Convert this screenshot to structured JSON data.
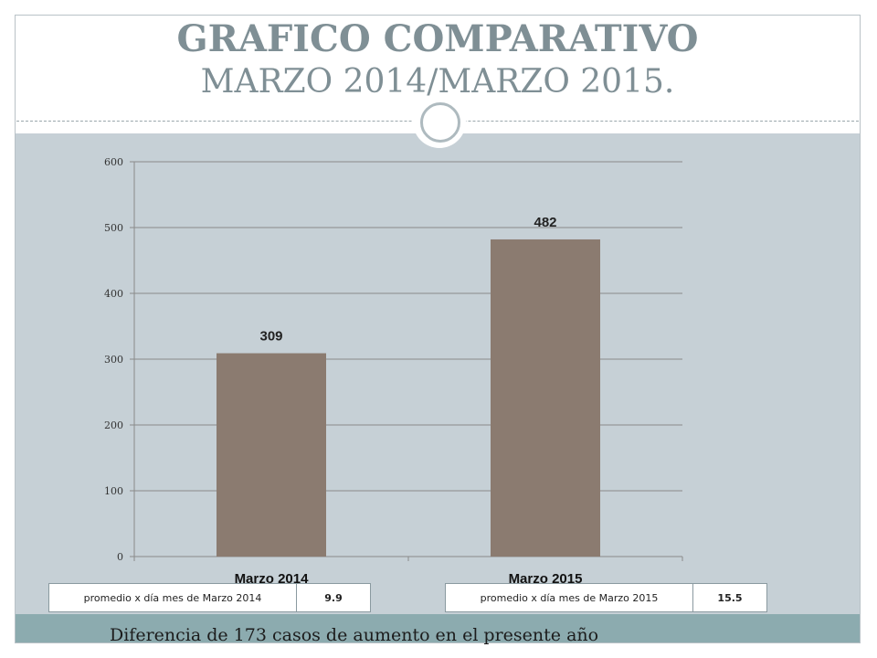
{
  "title": {
    "line1": "GRAFICO COMPARATIVO",
    "line2": "MARZO 2014/MARZO 2015."
  },
  "chart_data": {
    "type": "bar",
    "categories": [
      "Marzo 2014",
      "Marzo 2015"
    ],
    "values": [
      309,
      482
    ],
    "data_labels": [
      "309",
      "482"
    ],
    "ylim": [
      0,
      600
    ],
    "yticks": [
      0,
      100,
      200,
      300,
      400,
      500,
      600
    ],
    "grid": true,
    "bar_color": "#8b7b70"
  },
  "averages": [
    {
      "label": "promedio x día mes de Marzo 2014",
      "value": "9.9"
    },
    {
      "label": "promedio x día mes de Marzo 2015",
      "value": "15.5"
    }
  ],
  "footer": {
    "text": "Diferencia de 173 casos de aumento en el presente año"
  },
  "colors": {
    "title": "#7f8f95",
    "background": "#c6d0d6",
    "footer_bar": "#8cabaf"
  }
}
